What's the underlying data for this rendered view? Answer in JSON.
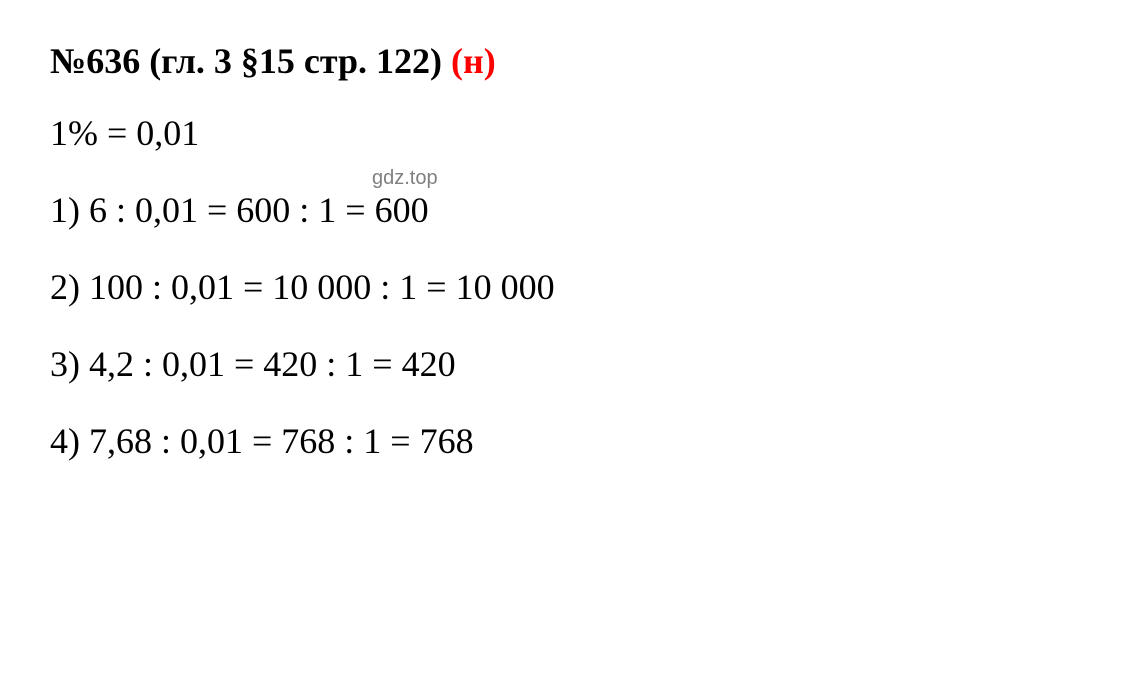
{
  "heading": {
    "prefix": "№",
    "number": "636",
    "ref": " (гл. 3 §15 стр. 122) ",
    "suffix": "(н)",
    "black_color": "#000000",
    "red_color": "#ff0000",
    "fontsize": 36,
    "fontweight": "bold"
  },
  "lines": {
    "line1": "1% = 0,01",
    "line2": "1) 6 : 0,01 = 600 : 1 = 600",
    "line3": "2) 100 : 0,01 = 10 000 : 1 = 10 000",
    "line4": "3) 4,2 : 0,01 = 420 : 1 = 420",
    "line5": "4) 7,68 : 0,01 = 768 : 1 = 768",
    "fontsize": 36,
    "text_color": "#000000"
  },
  "watermark": {
    "text": "gdz.top",
    "color": "#808080",
    "fontsize": 20
  },
  "background_color": "#ffffff"
}
